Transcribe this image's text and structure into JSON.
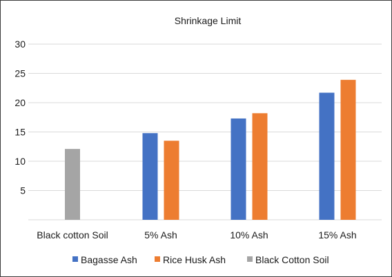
{
  "chart_data": {
    "type": "bar",
    "title": "Shrinkage Limit",
    "xlabel": "",
    "ylabel": "",
    "categories": [
      "Black cotton Soil",
      "5% Ash",
      "10% Ash",
      "15% Ash"
    ],
    "series": [
      {
        "name": "Bagasse Ash",
        "color": "#4472c4",
        "values": [
          null,
          14.8,
          17.3,
          21.7
        ]
      },
      {
        "name": "Rice Husk Ash",
        "color": "#ed7d31",
        "values": [
          null,
          13.5,
          18.2,
          23.9
        ]
      },
      {
        "name": "Black Cotton Soil",
        "color": "#a5a5a5",
        "values": [
          12.1,
          null,
          null,
          null
        ]
      }
    ],
    "ylim": [
      0,
      30
    ],
    "yticks": [
      5,
      10,
      15,
      20,
      25,
      30
    ],
    "grid": true,
    "legend_position": "bottom"
  }
}
